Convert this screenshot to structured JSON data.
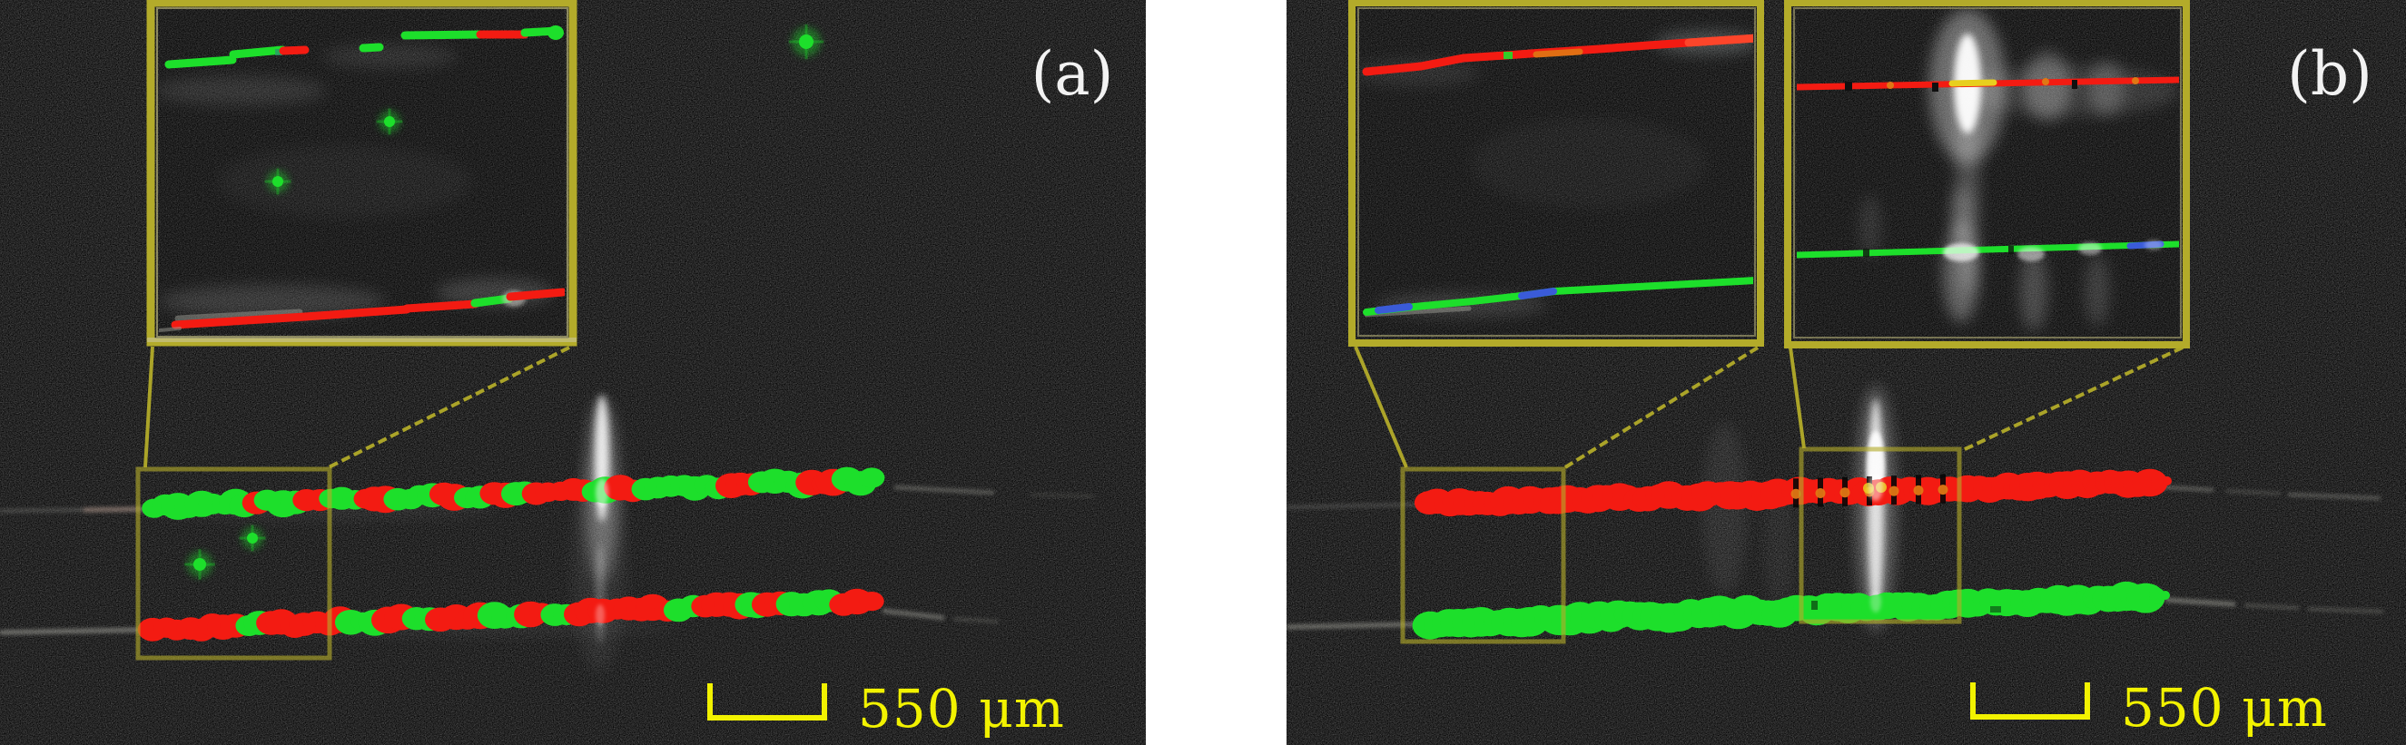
{
  "figure": {
    "description": "Two-panel dark-field microscope photograph of two horizontal waveguide lines overlaid with red/green detection traces, each panel with yellow magnified inset boxes and a yellow scale bar",
    "panels": [
      {
        "id": "a",
        "label": "(a)",
        "scale_bar_label": "550 μm",
        "top_trace_segments": [
          [
            "g",
            72
          ],
          [
            "g",
            52
          ],
          [
            "r",
            14
          ],
          [
            "g",
            46
          ],
          [
            "r",
            30
          ],
          [
            "g",
            40
          ],
          [
            "r",
            40
          ],
          [
            "g",
            56
          ],
          [
            "r",
            26
          ],
          [
            "g",
            32
          ],
          [
            "r",
            28
          ],
          [
            "g",
            24
          ],
          [
            "r",
            72
          ],
          [
            "g",
            28
          ],
          [
            "r",
            34
          ],
          [
            "g",
            42
          ],
          [
            "g",
            60
          ],
          [
            "r",
            36
          ],
          [
            "g",
            62
          ],
          [
            "r",
            38
          ],
          [
            "g",
            48
          ]
        ],
        "bottom_trace_segments": [
          [
            "r",
            105
          ],
          [
            "g",
            26
          ],
          [
            "r",
            90
          ],
          [
            "g",
            40
          ],
          [
            "r",
            32
          ],
          [
            "g",
            28
          ],
          [
            "r",
            58
          ],
          [
            "g",
            44
          ],
          [
            "r",
            24
          ],
          [
            "g",
            28
          ],
          [
            "r",
            112
          ],
          [
            "g",
            32
          ],
          [
            "r",
            48
          ],
          [
            "g",
            20
          ],
          [
            "r",
            26
          ],
          [
            "g",
            56
          ],
          [
            "r",
            46
          ]
        ],
        "stray_dots": [
          [
            220,
            622,
            7
          ],
          [
            278,
            593,
            6
          ],
          [
            888,
            46,
            8
          ]
        ],
        "inset_dots": [
          [
            306,
            200,
            6
          ],
          [
            429,
            134,
            6
          ]
        ]
      },
      {
        "id": "b",
        "label": "(b)",
        "scale_bar_label": "550 μm",
        "red_bead_zone": [
          1978,
          2162
        ],
        "red_trace": "continuous",
        "green_trace": "continuous"
      }
    ],
    "colors": {
      "background": "#070707",
      "gap_white": "#ffffff",
      "green": "#1ddf2b",
      "red": "#f31b12",
      "orange": "#e07714",
      "blue": "#3a5bd8",
      "gray_line": "#9b9b93",
      "box_yellow": "#b3ab2a",
      "scale_yellow": "#f2f200",
      "label_white": "#f2f2f2",
      "glow_white": "#ffffff"
    }
  }
}
